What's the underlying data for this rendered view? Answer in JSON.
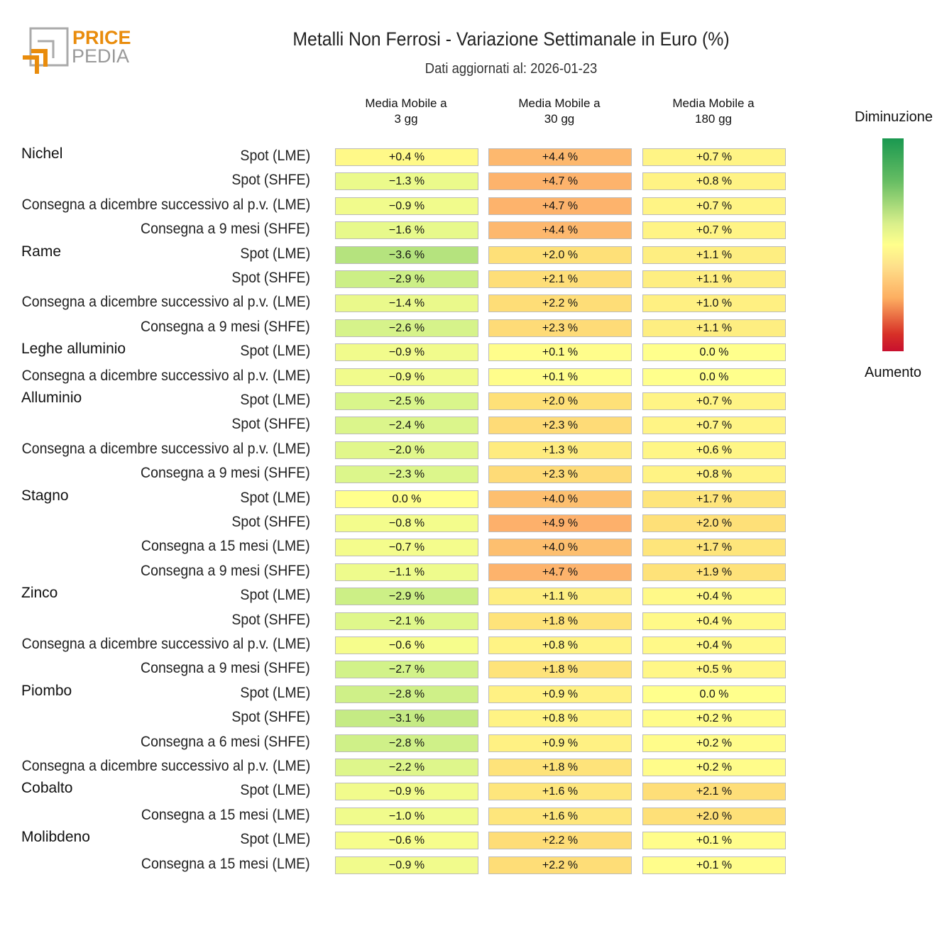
{
  "header": {
    "title": "Metalli Non Ferrosi - Variazione Settimanale in Euro (%)",
    "subtitle": "Dati aggiornati al: 2026-01-23",
    "logo_text": [
      "PRICE",
      "PEDIA"
    ]
  },
  "legend": {
    "top": "Diminuzione",
    "bottom": "Aumento",
    "colors": [
      "#1a9850",
      "#ffff8c",
      "#c8102e"
    ]
  },
  "chart_data": {
    "type": "heatmap",
    "title": "Metalli Non Ferrosi - Variazione Settimanale in Euro (%)",
    "columns": [
      "Media Mobile a\n3 gg",
      "Media Mobile a\n30 gg",
      "Media Mobile a\n180 gg"
    ],
    "unit": "%",
    "groups": [
      {
        "name": "Nichel",
        "rows": [
          {
            "label": "Spot (LME)",
            "values": [
              0.4,
              4.4,
              0.7
            ]
          },
          {
            "label": "Spot (SHFE)",
            "values": [
              -1.3,
              4.7,
              0.8
            ]
          },
          {
            "label": "Consegna a dicembre successivo al p.v. (LME)",
            "values": [
              -0.9,
              4.7,
              0.7
            ]
          },
          {
            "label": "Consegna a 9 mesi (SHFE)",
            "values": [
              -1.6,
              4.4,
              0.7
            ]
          }
        ]
      },
      {
        "name": "Rame",
        "rows": [
          {
            "label": "Spot (LME)",
            "values": [
              -3.6,
              2.0,
              1.1
            ]
          },
          {
            "label": "Spot (SHFE)",
            "values": [
              -2.9,
              2.1,
              1.1
            ]
          },
          {
            "label": "Consegna a dicembre successivo al p.v. (LME)",
            "values": [
              -1.4,
              2.2,
              1.0
            ]
          },
          {
            "label": "Consegna a 9 mesi (SHFE)",
            "values": [
              -2.6,
              2.3,
              1.1
            ]
          }
        ]
      },
      {
        "name": "Leghe alluminio",
        "rows": [
          {
            "label": "Spot (LME)",
            "values": [
              -0.9,
              0.1,
              0.0
            ]
          },
          {
            "label": "Consegna a dicembre successivo al p.v. (LME)",
            "values": [
              -0.9,
              0.1,
              0.0
            ]
          }
        ]
      },
      {
        "name": "Alluminio",
        "rows": [
          {
            "label": "Spot (LME)",
            "values": [
              -2.5,
              2.0,
              0.7
            ]
          },
          {
            "label": "Spot (SHFE)",
            "values": [
              -2.4,
              2.3,
              0.7
            ]
          },
          {
            "label": "Consegna a dicembre successivo al p.v. (LME)",
            "values": [
              -2.0,
              1.3,
              0.6
            ]
          },
          {
            "label": "Consegna a 9 mesi (SHFE)",
            "values": [
              -2.3,
              2.3,
              0.8
            ]
          }
        ]
      },
      {
        "name": "Stagno",
        "rows": [
          {
            "label": "Spot (LME)",
            "values": [
              0.0,
              4.0,
              1.7
            ]
          },
          {
            "label": "Spot (SHFE)",
            "values": [
              -0.8,
              4.9,
              2.0
            ]
          },
          {
            "label": "Consegna a 15 mesi (LME)",
            "values": [
              -0.7,
              4.0,
              1.7
            ]
          },
          {
            "label": "Consegna a 9 mesi (SHFE)",
            "values": [
              -1.1,
              4.7,
              1.9
            ]
          }
        ]
      },
      {
        "name": "Zinco",
        "rows": [
          {
            "label": "Spot (LME)",
            "values": [
              -2.9,
              1.1,
              0.4
            ]
          },
          {
            "label": "Spot (SHFE)",
            "values": [
              -2.1,
              1.8,
              0.4
            ]
          },
          {
            "label": "Consegna a dicembre successivo al p.v. (LME)",
            "values": [
              -0.6,
              0.8,
              0.4
            ]
          },
          {
            "label": "Consegna a 9 mesi (SHFE)",
            "values": [
              -2.7,
              1.8,
              0.5
            ]
          }
        ]
      },
      {
        "name": "Piombo",
        "rows": [
          {
            "label": "Spot (LME)",
            "values": [
              -2.8,
              0.9,
              0.0
            ]
          },
          {
            "label": "Spot (SHFE)",
            "values": [
              -3.1,
              0.8,
              0.2
            ]
          },
          {
            "label": "Consegna a 6 mesi (SHFE)",
            "values": [
              -2.8,
              0.9,
              0.2
            ]
          },
          {
            "label": "Consegna a dicembre successivo al p.v. (LME)",
            "values": [
              -2.2,
              1.8,
              0.2
            ]
          }
        ]
      },
      {
        "name": "Cobalto",
        "rows": [
          {
            "label": "Spot (LME)",
            "values": [
              -0.9,
              1.6,
              2.1
            ]
          },
          {
            "label": "Consegna a 15 mesi (LME)",
            "values": [
              -1.0,
              1.6,
              2.0
            ]
          }
        ]
      },
      {
        "name": "Molibdeno",
        "rows": [
          {
            "label": "Spot (LME)",
            "values": [
              -0.6,
              2.2,
              0.1
            ]
          },
          {
            "label": "Consegna a 15 mesi (LME)",
            "values": [
              -0.9,
              2.2,
              0.1
            ]
          }
        ]
      }
    ]
  }
}
